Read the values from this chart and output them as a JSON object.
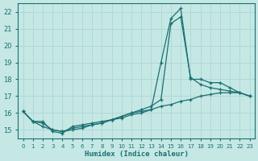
{
  "xlabel": "Humidex (Indice chaleur)",
  "xlim": [
    -0.5,
    23.5
  ],
  "ylim": [
    14.5,
    22.5
  ],
  "yticks": [
    15,
    16,
    17,
    18,
    19,
    20,
    21,
    22
  ],
  "xticks": [
    0,
    1,
    2,
    3,
    4,
    5,
    6,
    7,
    8,
    9,
    10,
    11,
    12,
    13,
    14,
    15,
    16,
    17,
    18,
    19,
    20,
    21,
    22,
    23
  ],
  "bg_color": "#c5e8e5",
  "grid_color": "#b0d8d5",
  "line_color": "#1a7070",
  "curve1": [
    16.1,
    15.5,
    15.5,
    14.9,
    14.8,
    15.2,
    15.3,
    15.4,
    15.5,
    15.6,
    15.8,
    16.0,
    16.1,
    16.2,
    19.0,
    21.6,
    22.2,
    18.0,
    18.0,
    17.8,
    17.8,
    17.5,
    17.2,
    17.0
  ],
  "curve2": [
    16.1,
    15.5,
    15.4,
    15.0,
    14.9,
    15.1,
    15.2,
    15.3,
    15.4,
    15.6,
    15.8,
    16.0,
    16.2,
    16.4,
    16.8,
    21.3,
    21.7,
    18.1,
    17.7,
    17.5,
    17.4,
    17.3,
    17.2,
    17.0
  ],
  "curve3": [
    16.1,
    15.5,
    15.2,
    15.0,
    14.9,
    15.0,
    15.1,
    15.3,
    15.4,
    15.6,
    15.7,
    15.9,
    16.0,
    16.2,
    16.4,
    16.5,
    16.7,
    16.8,
    17.0,
    17.1,
    17.2,
    17.2,
    17.2,
    17.0
  ]
}
